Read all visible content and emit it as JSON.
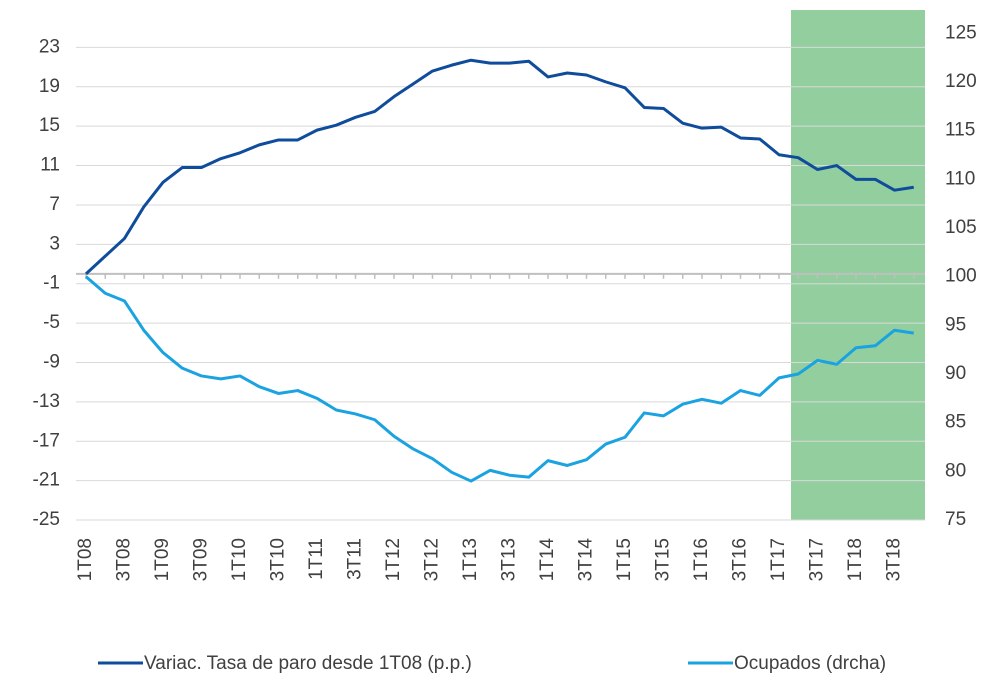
{
  "chart_data": {
    "type": "line",
    "categories": [
      "1T08",
      null,
      "3T08",
      null,
      "1T09",
      null,
      "3T09",
      null,
      "1T10",
      null,
      "3T10",
      null,
      "1T11",
      null,
      "3T11",
      null,
      "1T12",
      null,
      "3T12",
      null,
      "1T13",
      null,
      "3T13",
      null,
      "1T14",
      null,
      "3T14",
      null,
      "1T15",
      null,
      "3T15",
      null,
      "1T16",
      null,
      "3T16",
      null,
      "1T17",
      null,
      "3T17",
      null,
      "1T18",
      null,
      "3T18",
      null
    ],
    "series": [
      {
        "name": "Variac. Tasa de paro desde 1T08 (p.p.)",
        "color": "#0f4c9c",
        "axis": "y",
        "values": [
          0,
          1.8,
          3.6,
          6.8,
          9.3,
          10.8,
          10.8,
          11.7,
          12.3,
          13.1,
          13.6,
          13.6,
          14.6,
          15.1,
          15.9,
          16.5,
          18.0,
          19.3,
          20.6,
          21.2,
          21.7,
          21.4,
          21.4,
          21.6,
          20.0,
          20.4,
          20.2,
          19.5,
          18.9,
          16.9,
          16.8,
          15.3,
          14.8,
          14.9,
          13.8,
          13.7,
          12.1,
          11.8,
          10.6,
          11.0,
          9.6,
          9.6,
          8.5,
          8.8
        ]
      },
      {
        "name": "Ocupados (drcha)",
        "color": "#1aa3e0",
        "axis": "y2",
        "values": [
          100,
          98.3,
          97.5,
          94.5,
          92.2,
          90.6,
          89.8,
          89.5,
          89.8,
          88.7,
          88.0,
          88.3,
          87.5,
          86.3,
          85.9,
          85.3,
          83.6,
          82.3,
          81.3,
          79.9,
          79.0,
          80.1,
          79.6,
          79.4,
          81.1,
          80.6,
          81.2,
          82.8,
          83.5,
          86.0,
          85.7,
          86.9,
          87.4,
          87.0,
          88.3,
          87.8,
          89.6,
          90.0,
          91.4,
          91.0,
          92.7,
          92.9,
          94.5,
          94.2
        ]
      }
    ],
    "ylim": [
      -25,
      26.8
    ],
    "yticks": [
      -25,
      -21,
      -17,
      -13,
      -9,
      -5,
      -1,
      3,
      7,
      11,
      15,
      19,
      23
    ],
    "y2lim": [
      75,
      127.4
    ],
    "y2ticks": [
      75,
      80,
      85,
      90,
      95,
      100,
      105,
      110,
      115,
      120,
      125
    ],
    "grid": true,
    "legend": "bottom"
  }
}
